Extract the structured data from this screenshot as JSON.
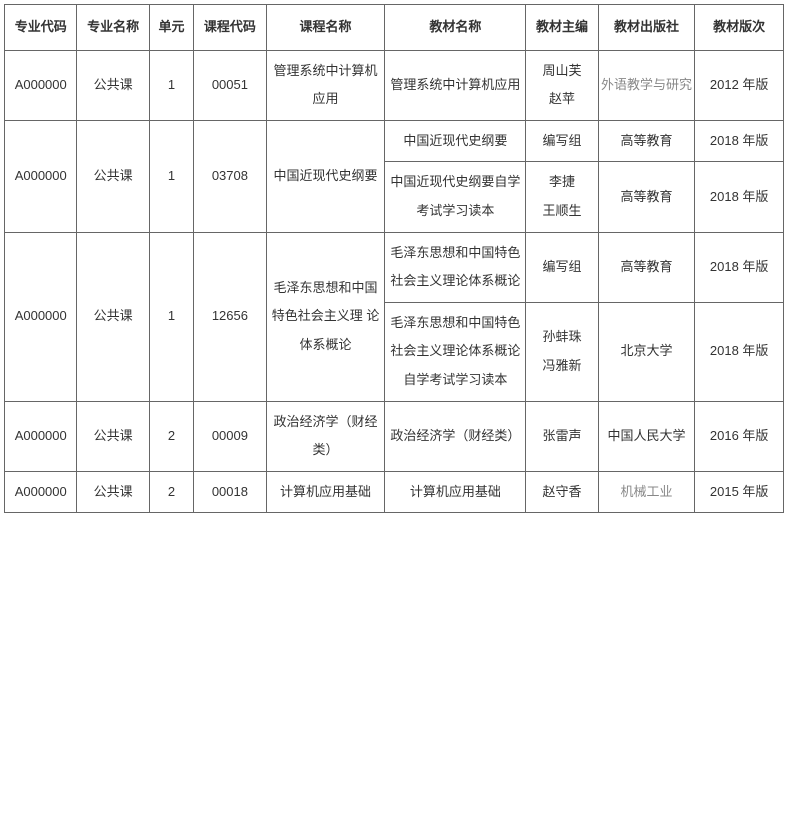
{
  "headers": [
    "专业代码",
    "专业名称",
    "单元",
    "课程代码",
    "课程名称",
    "教材名称",
    "教材主编",
    "教材出版社",
    "教材版次"
  ],
  "rows": [
    {
      "major_code": "A000000",
      "major_name": "公共课",
      "unit": "1",
      "course_code": "00051",
      "course_name": "管理系统中计算机应用",
      "books": [
        {
          "book_name": "管理系统中计算机应用",
          "editor": "周山芙\n赵苹",
          "publisher": "外语教学与研究",
          "publisher_gray": true,
          "edition": "2012 年版"
        }
      ]
    },
    {
      "major_code": "A000000",
      "major_name": "公共课",
      "unit": "1",
      "course_code": "03708",
      "course_name": "中国近现代史纲要",
      "books": [
        {
          "book_name": "中国近现代史纲要",
          "editor": "编写组",
          "publisher": "高等教育",
          "publisher_gray": false,
          "edition": "2018 年版"
        },
        {
          "book_name": "中国近现代史纲要自学考试学习读本",
          "editor": "李捷\n王顺生",
          "publisher": "高等教育",
          "publisher_gray": false,
          "edition": "2018 年版"
        }
      ]
    },
    {
      "major_code": "A000000",
      "major_name": "公共课",
      "unit": "1",
      "course_code": "12656",
      "course_name": "毛泽东思想和中国特色社会主义理  论体系概论",
      "books": [
        {
          "book_name": "毛泽东思想和中国特色社会主义理论体系概论",
          "editor": "编写组",
          "publisher": "高等教育",
          "publisher_gray": false,
          "edition": "2018 年版"
        },
        {
          "book_name": "毛泽东思想和中国特色社会主义理论体系概论自学考试学习读本",
          "editor": "孙蚌珠\n冯雅新",
          "publisher": "北京大学",
          "publisher_gray": false,
          "edition": "2018 年版"
        }
      ]
    },
    {
      "major_code": "A000000",
      "major_name": "公共课",
      "unit": "2",
      "course_code": "00009",
      "course_name": "政治经济学（财经类）",
      "books": [
        {
          "book_name": "政治经济学（财经类）",
          "editor": "张雷声",
          "publisher": "中国人民大学",
          "publisher_gray": false,
          "edition": "2016 年版"
        }
      ]
    },
    {
      "major_code": "A000000",
      "major_name": "公共课",
      "unit": "2",
      "course_code": "00018",
      "course_name": "计算机应用基础",
      "books": [
        {
          "book_name": "计算机应用基础",
          "editor": "赵守香",
          "publisher": "机械工业",
          "publisher_gray": true,
          "edition": "2015 年版"
        }
      ]
    }
  ],
  "col_classes": [
    "c0",
    "c1",
    "c2",
    "c3",
    "c4",
    "c5",
    "c6",
    "c7",
    "c8"
  ]
}
